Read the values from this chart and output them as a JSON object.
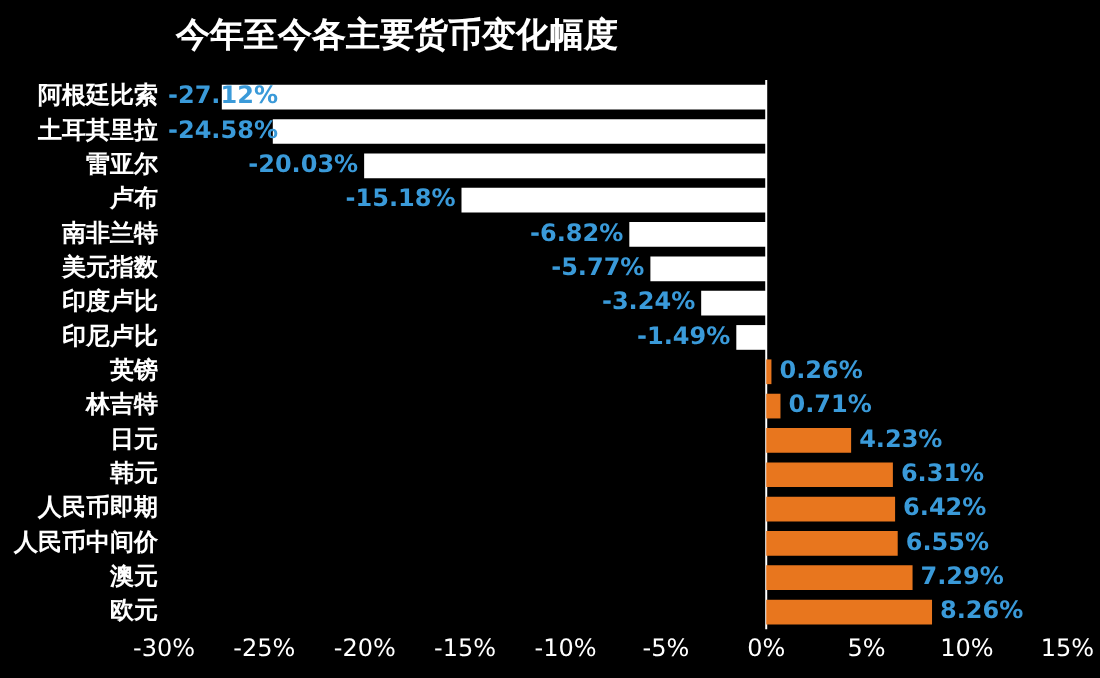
{
  "chart_data": {
    "type": "bar",
    "orientation": "horizontal",
    "title": "今年至今各主要货币变化幅度",
    "categories": [
      "阿根廷比索",
      "土耳其里拉",
      "雷亚尔",
      "卢布",
      "南非兰特",
      "美元指数",
      "印度卢比",
      "印尼卢比",
      "英镑",
      "林吉特",
      "日元",
      "韩元",
      "人民币即期",
      "人民币中间价",
      "澳元",
      "欧元"
    ],
    "values": [
      -27.12,
      -24.58,
      -20.03,
      -15.18,
      -6.82,
      -5.77,
      -3.24,
      -1.49,
      0.26,
      0.71,
      4.23,
      6.31,
      6.42,
      6.55,
      7.29,
      8.26
    ],
    "colors": [
      "#ffffff",
      "#ffffff",
      "#ffffff",
      "#ffffff",
      "#ffffff",
      "#ffffff",
      "#ffffff",
      "#ffffff",
      "#e8761e",
      "#e8761e",
      "#e8761e",
      "#e8761e",
      "#e8761e",
      "#e8761e",
      "#e8761e",
      "#e8761e"
    ],
    "value_labels": [
      "-27.12%",
      "-24.58%",
      "-20.03%",
      "-15.18%",
      "-6.82%",
      "-5.77%",
      "-3.24%",
      "-1.49%",
      "0.26%",
      "0.71%",
      "4.23%",
      "6.31%",
      "6.42%",
      "6.55%",
      "7.29%",
      "8.26%"
    ],
    "xlim": [
      -30,
      15
    ],
    "xticks": [
      {
        "value": -30,
        "label": "-30%"
      },
      {
        "value": -25,
        "label": "-25%"
      },
      {
        "value": -20,
        "label": "-20%"
      },
      {
        "value": -15,
        "label": "-15%"
      },
      {
        "value": -10,
        "label": "-10%"
      },
      {
        "value": -5,
        "label": "-5%"
      },
      {
        "value": 0,
        "label": "0%"
      },
      {
        "value": 5,
        "label": "5%"
      },
      {
        "value": 10,
        "label": "10%"
      },
      {
        "value": 15,
        "label": "15%"
      }
    ],
    "ref_lines": [
      {
        "axis": "x",
        "value": 0,
        "color": "#ffffff"
      }
    ],
    "grid": false,
    "legend": false
  }
}
